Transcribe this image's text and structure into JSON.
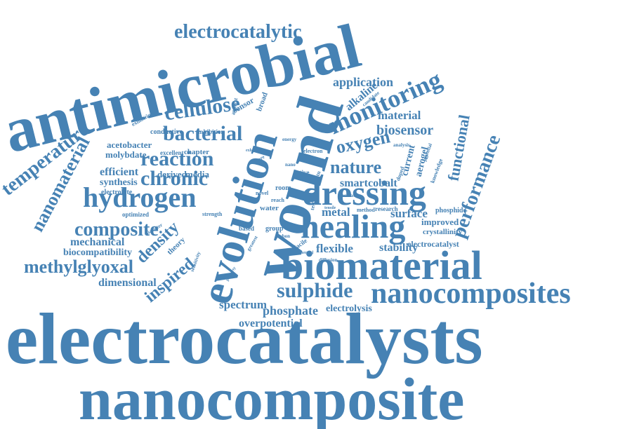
{
  "style": {
    "word_color": "#4682b4",
    "background": "#ffffff"
  },
  "words": {
    "electrocatalysts": "electrocatalysts",
    "nanocomposite": "nanocomposite",
    "antimicrobial": "antimicrobial",
    "wound": "wound",
    "evolution": "evolution",
    "biomaterial": "biomaterial",
    "nanocomposites": "nanocomposites",
    "dressing": "dressing",
    "healing": "healing",
    "electrocatalytic": "electrocatalytic",
    "hydrogen": "hydrogen",
    "monitoring": "monitoring",
    "cellulose": "cellulose",
    "bacterial": "bacterial",
    "reaction": "reaction",
    "chronic": "chronic",
    "nanomaterial": "nanomaterial",
    "temperature": "temperature",
    "composite": "composite",
    "methylglyoxal": "methylglyoxal",
    "performance": "performance",
    "functional": "functional",
    "oxygen": "oxygen",
    "nature": "nature",
    "biosensor": "biosensor",
    "sulphide": "sulphide",
    "density": "density",
    "inspired": "inspired",
    "application": "application",
    "material": "material",
    "alkaline": "alkaline",
    "smartcobalt": "smartcobalt",
    "metal": "metal",
    "surface": "surface",
    "flexible": "flexible",
    "stability": "stability",
    "spectrum": "spectrum",
    "phosphate": "phosphate",
    "electrolysis": "electrolysis",
    "overpotential": "overpotential",
    "mechanical": "mechanical",
    "biocompatibility": "biocompatibility",
    "dimensional": "dimensional",
    "efficient": "efficient",
    "synthesis": "synthesis",
    "electrolyte": "electrolyte",
    "optimized": "optimized",
    "acetobacter": "acetobacter",
    "molybdate": "molybdate",
    "conductive": "conductive",
    "inhibition": "inhibition",
    "exhibiting": "exhibiting",
    "chapter": "chapter",
    "excellent": "excellent",
    "derived": "derived",
    "media": "media",
    "sensor": "sensor",
    "broad": "broad",
    "analyst": "analyst",
    "current": "current",
    "aerogel": "aerogel",
    "improved": "improved",
    "crystallinity": "crystallinity",
    "electrocatalyst": "electrocatalyst",
    "phosphide": "phosphide",
    "research": "research",
    "method": "method",
    "room": "room",
    "water": "water",
    "group": "group",
    "based": "based",
    "carbon": "carbon",
    "facile": "facile",
    "diffusion": "diffusion",
    "theory": "theory",
    "strength": "strength",
    "novel": "novel",
    "active": "active",
    "electron": "electron",
    "energy": "energy",
    "candidate": "candidate",
    "analysis": "analysis",
    "potential": "potential",
    "knowledge": "knowledge",
    "doped": "doped",
    "increase": "increase",
    "test": "test",
    "pdtn": "pdtn",
    "nano": "nano",
    "more": "more",
    "exhibit": "exhibit",
    "diameter": "diameter",
    "sensitivity": "sensitivity",
    "property": "property",
    "greatest": "greatest",
    "thermal": "thermal",
    "tensile": "tensile",
    "cost": "cost",
    "reach": "reach",
    "vitro": "vitro"
  }
}
